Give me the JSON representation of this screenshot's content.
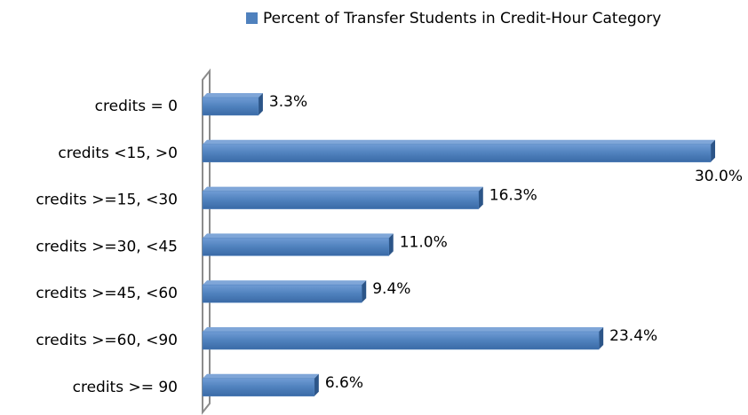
{
  "chart_data": {
    "type": "bar",
    "orientation": "horizontal",
    "legend": "top",
    "color": "#4f81bd",
    "categories": [
      "credits = 0",
      "credits <15, >0",
      "credits >=15, <30",
      "credits >=30, <45",
      "credits >=45, <60",
      "credits >=60, <90",
      "credits >= 90"
    ],
    "series": [
      {
        "name": "Percent of Transfer Students in Credit-Hour Category",
        "color": "#4f81bd",
        "values": [
          3.3,
          30.0,
          16.3,
          11.0,
          9.4,
          23.4,
          6.6
        ],
        "value_labels": [
          "3.3%",
          "30.0%",
          "16.3%",
          "11.0%",
          "9.4%",
          "23.4%",
          "6.6%"
        ]
      }
    ]
  }
}
